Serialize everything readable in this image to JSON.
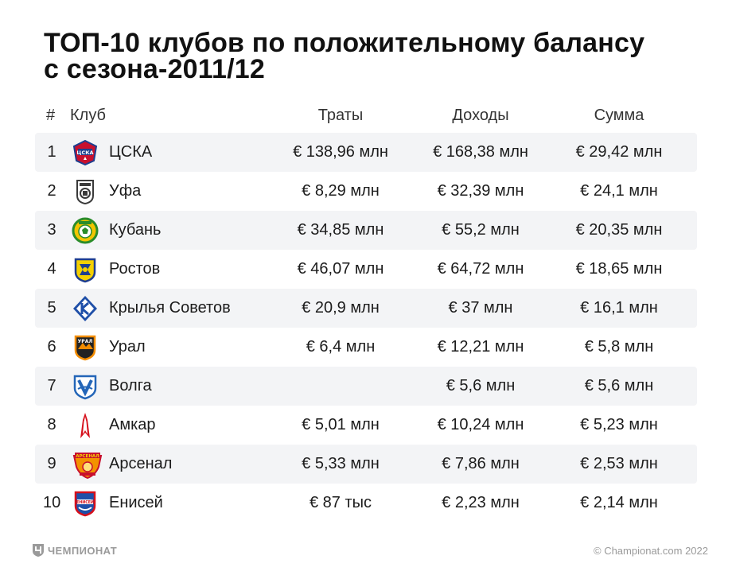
{
  "title": {
    "line1": "ТОП-10 клубов по положительному балансу",
    "line2": "с сезона-2011/12"
  },
  "header": {
    "num": "#",
    "club": "Клуб",
    "spend": "Траты",
    "income": "Доходы",
    "sum": "Сумма"
  },
  "rows": [
    {
      "num": "1",
      "club": "ЦСКА",
      "logo": "cska-logo-icon",
      "spend": "€ 138,96 млн",
      "income": "€ 168,38 млн",
      "sum": "€ 29,42 млн"
    },
    {
      "num": "2",
      "club": "Уфа",
      "logo": "ufa-logo-icon",
      "spend": "€ 8,29 млн",
      "income": "€ 32,39 млн",
      "sum": "€ 24,1 млн"
    },
    {
      "num": "3",
      "club": "Кубань",
      "logo": "kuban-logo-icon",
      "spend": "€ 34,85 млн",
      "income": "€ 55,2 млн",
      "sum": "€ 20,35 млн"
    },
    {
      "num": "4",
      "club": "Ростов",
      "logo": "rostov-logo-icon",
      "spend": "€ 46,07 млн",
      "income": "€ 64,72 млн",
      "sum": "€ 18,65 млн"
    },
    {
      "num": "5",
      "club": "Крылья Советов",
      "logo": "krylia-logo-icon",
      "spend": "€ 20,9 млн",
      "income": "€ 37 млн",
      "sum": "€ 16,1 млн"
    },
    {
      "num": "6",
      "club": "Урал",
      "logo": "ural-logo-icon",
      "spend": "€ 6,4 млн",
      "income": "€ 12,21 млн",
      "sum": "€ 5,8 млн"
    },
    {
      "num": "7",
      "club": "Волга",
      "logo": "volga-logo-icon",
      "spend": "",
      "income": "€ 5,6 млн",
      "sum": "€ 5,6 млн"
    },
    {
      "num": "8",
      "club": "Амкар",
      "logo": "amkar-logo-icon",
      "spend": "€ 5,01 млн",
      "income": "€ 10,24 млн",
      "sum": "€ 5,23 млн"
    },
    {
      "num": "9",
      "club": "Арсенал",
      "logo": "arsenal-logo-icon",
      "spend": "€ 5,33 млн",
      "income": "€ 7,86 млн",
      "sum": "€ 2,53 млн"
    },
    {
      "num": "10",
      "club": "Енисей",
      "logo": "enisey-logo-icon",
      "spend": "€ 87 тыс",
      "income": "€ 2,23 млн",
      "sum": "€ 2,14 млн"
    }
  ],
  "footer": {
    "brand": "ЧЕМПИОНАТ",
    "copyright": "© Championat.com 2022"
  },
  "colors": {
    "row_shade": "#f3f4f6",
    "text": "#1c1c1c",
    "footer_text": "#9a9a9a"
  }
}
